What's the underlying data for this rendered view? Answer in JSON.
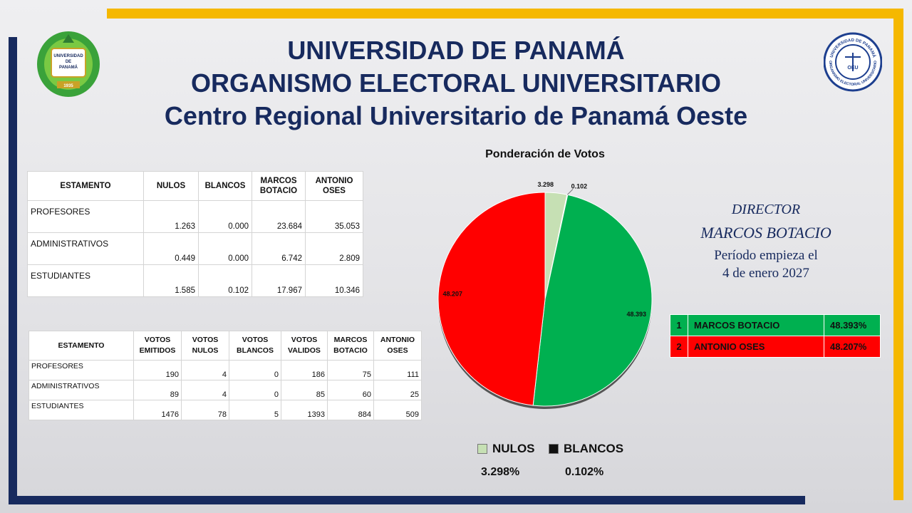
{
  "header": {
    "line1": "UNIVERSIDAD DE PANAMÁ",
    "line2": "ORGANISMO ELECTORAL UNIVERSITARIO",
    "line3": "Centro Regional Universitario de Panamá Oeste"
  },
  "logos": {
    "left": {
      "lines": [
        "UNIVERSIDAD",
        "DE",
        "PANAMÁ"
      ],
      "year": "1935"
    },
    "right": {
      "top_text": "UNIVERSIDAD DE PANAMÁ",
      "bottom_text": "ORGANISMO ELECTORAL UNIVERSITARIO",
      "center": "OEU"
    }
  },
  "pond_table": {
    "headers": [
      "ESTAMENTO",
      "NULOS",
      "BLANCOS",
      "MARCOS BOTACIO",
      "ANTONIO OSES"
    ],
    "rows": [
      [
        "PROFESORES",
        "1.263",
        "0.000",
        "23.684",
        "35.053"
      ],
      [
        "ADMINISTRATIVOS",
        "0.449",
        "0.000",
        "6.742",
        "2.809"
      ],
      [
        "ESTUDIANTES",
        "1.585",
        "0.102",
        "17.967",
        "10.346"
      ]
    ]
  },
  "votes_table": {
    "headers": [
      "ESTAMENTO",
      "VOTOS EMITIDOS",
      "VOTOS NULOS",
      "VOTOS BLANCOS",
      "VOTOS VALIDOS",
      "MARCOS BOTACIO",
      "ANTONIO OSES"
    ],
    "rows": [
      [
        "PROFESORES",
        "190",
        "4",
        "0",
        "186",
        "75",
        "111"
      ],
      [
        "ADMINISTRATIVOS",
        "89",
        "4",
        "0",
        "85",
        "60",
        "25"
      ],
      [
        "ESTUDIANTES",
        "1476",
        "78",
        "5",
        "1393",
        "884",
        "509"
      ]
    ]
  },
  "chart_data": {
    "type": "pie",
    "title": "Ponderación  de Votos",
    "labels": [
      "NULOS",
      "BLANCOS",
      "MARCOS BOTACIO",
      "ANTONIO OSES"
    ],
    "values": [
      3.298,
      0.102,
      48.393,
      48.207
    ],
    "data_labels": [
      "3.298",
      "0.102",
      "48.393",
      "48.207"
    ],
    "colors": [
      "#c6e0b4",
      "#111111",
      "#00b050",
      "#ff0000"
    ]
  },
  "legend": {
    "items": [
      {
        "label": "NULOS",
        "color": "#c6e0b4",
        "pct": "3.298%"
      },
      {
        "label": "BLANCOS",
        "color": "#111111",
        "pct": "0.102%"
      }
    ]
  },
  "director": {
    "role": "DIRECTOR",
    "name": "MARCOS BOTACIO",
    "period_line1": "Período empieza el",
    "period_line2": "4 de enero 2027"
  },
  "results": [
    {
      "rank": "1",
      "name": "MARCOS BOTACIO",
      "pct": "48.393%",
      "color": "#00b050"
    },
    {
      "rank": "2",
      "name": "ANTONIO OSES",
      "pct": "48.207%",
      "color": "#ff0000"
    }
  ]
}
